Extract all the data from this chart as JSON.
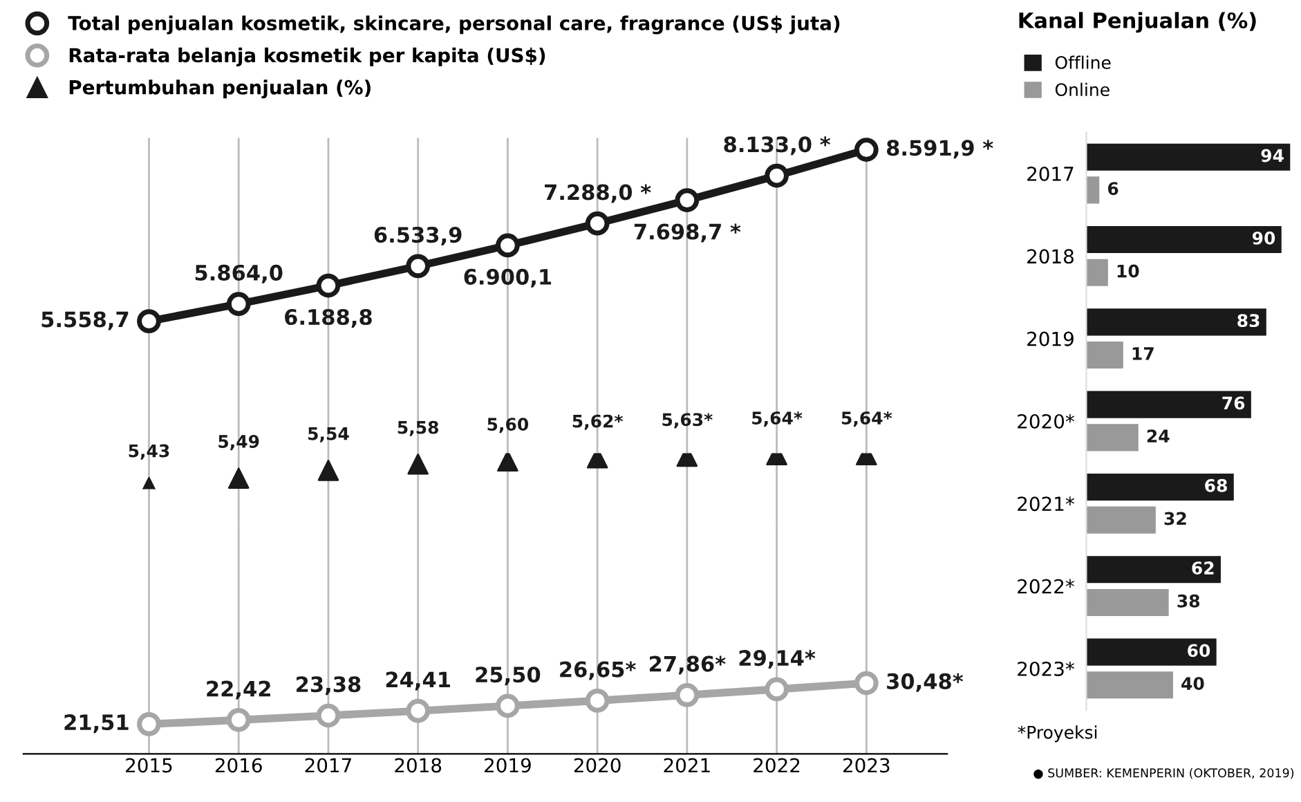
{
  "chart_data": [
    {
      "type": "line",
      "categories": [
        "2015",
        "2016",
        "2017",
        "2018",
        "2019",
        "2020",
        "2021",
        "2022",
        "2023"
      ],
      "series": [
        {
          "name": "Total penjualan kosmetik, skincare, personal care, fragrance (US$ juta)",
          "color": "#1a1a1a",
          "marker": "circle",
          "values": [
            5558.7,
            5864.0,
            6188.8,
            6533.9,
            6900.1,
            7288.0,
            7698.7,
            8133.0,
            8591.9
          ],
          "value_labels": [
            "5.558,7",
            "5.864,0",
            "6.188,8",
            "6.533,9",
            "6.900,1",
            "7.288,0 *",
            "7.698,7 *",
            "8.133,0 *",
            "8.591,9 *"
          ]
        }
      ],
      "ylim": [
        1950,
        8800
      ],
      "grid": "x",
      "legend": "top left",
      "tick_labels": false
    },
    {
      "type": "scatter",
      "categories": [
        "2015",
        "2016",
        "2017",
        "2018",
        "2019",
        "2020",
        "2021",
        "2022",
        "2023"
      ],
      "series": [
        {
          "name": "Pertumbuhan penjualan (%)",
          "color": "#1a1a1a",
          "marker": "triangle",
          "values": [
            5.43,
            5.49,
            5.54,
            5.58,
            5.6,
            5.62,
            5.63,
            5.64,
            5.64
          ],
          "value_labels": [
            "5,43",
            "5,49",
            "5,54",
            "5,58",
            "5,60",
            "5,62*",
            "5,63*",
            "5,64*",
            "5,64*"
          ]
        }
      ],
      "legend": "top left",
      "tick_labels": false
    },
    {
      "type": "line",
      "categories": [
        "2015",
        "2016",
        "2017",
        "2018",
        "2019",
        "2020",
        "2021",
        "2022",
        "2023"
      ],
      "series": [
        {
          "name": "Rata-rata belanja kosmetik per kapita (US$)",
          "color": "#a6a6a6",
          "marker": "circle",
          "values": [
            21.51,
            22.42,
            23.38,
            24.41,
            25.5,
            26.65,
            27.86,
            29.14,
            30.48
          ],
          "value_labels": [
            "21,51",
            "22,42",
            "23,38",
            "24,41",
            "25,50",
            "26,65*",
            "27,86*",
            "29,14*",
            "30,48*"
          ]
        }
      ],
      "ylim": [
        15,
        65
      ],
      "grid": "x",
      "legend": "top left",
      "tick_labels": "x"
    },
    {
      "type": "bar",
      "orientation": "horizontal",
      "title": "Kanal Penjualan (%)",
      "categories": [
        "2017",
        "2018",
        "2019",
        "2020*",
        "2021*",
        "2022*",
        "2023*"
      ],
      "series": [
        {
          "name": "Offline",
          "color": "#1a1a1a",
          "values": [
            94,
            90,
            83,
            76,
            68,
            62,
            60
          ]
        },
        {
          "name": "Online",
          "color": "#999999",
          "values": [
            6,
            10,
            17,
            24,
            32,
            38,
            40
          ]
        }
      ],
      "xlim": [
        0,
        96
      ],
      "data_labels": true,
      "legend": "top left",
      "tick_labels": "y",
      "annotations": [
        "*Proyeksi",
        "● SUMBER: KEMENPERIN (OKTOBER, 2019)"
      ]
    }
  ]
}
